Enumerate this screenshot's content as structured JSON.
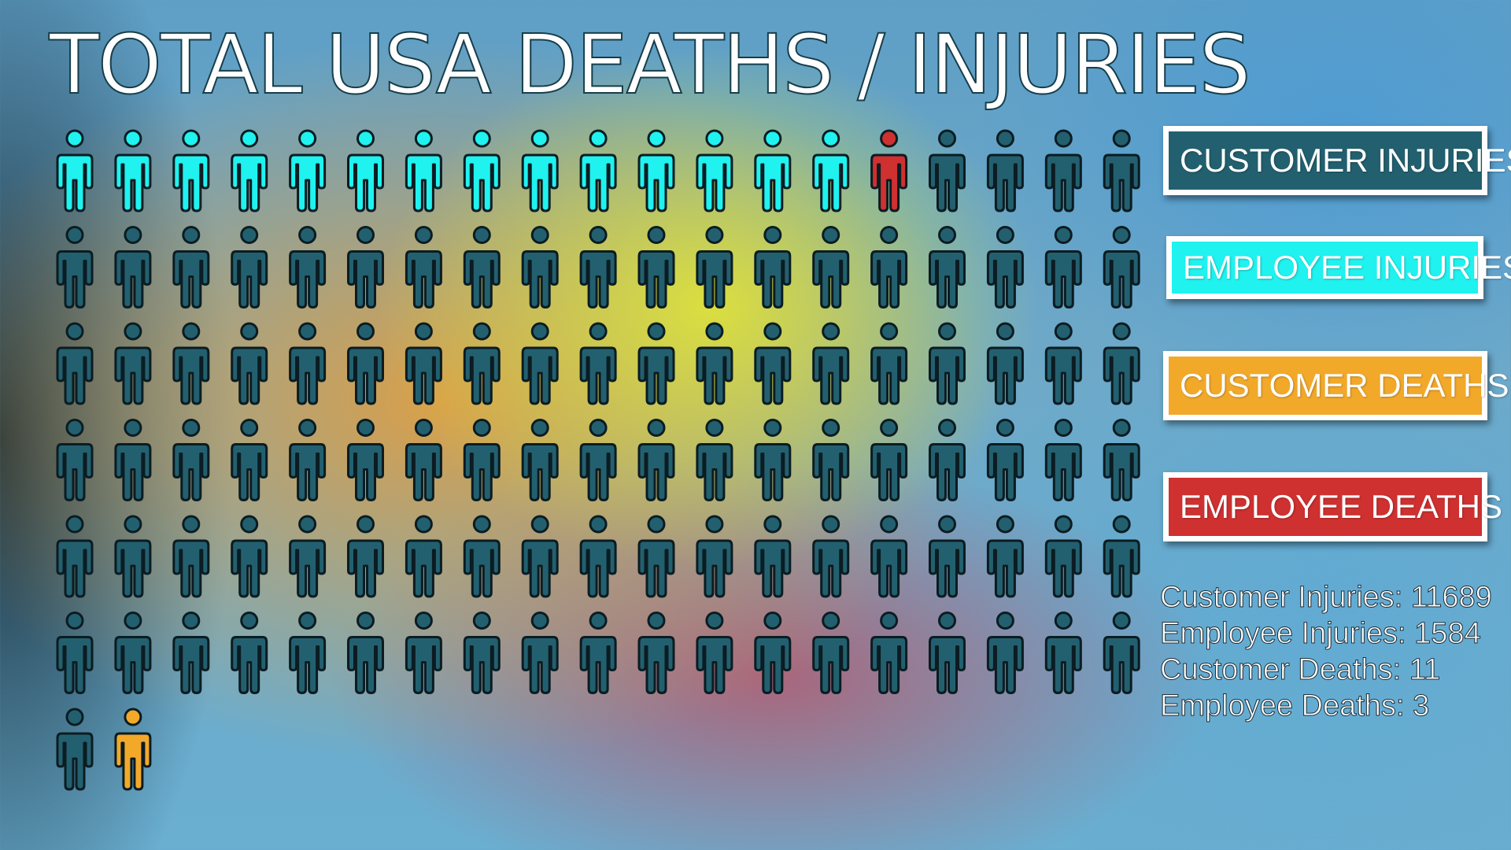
{
  "chart_data": {
    "type": "pictograph",
    "title": "TOTAL USA DEATHS / INJURIES",
    "unit_note": "",
    "icons_per_row": 19,
    "icon_sequence": [
      {
        "category": "employee_injuries",
        "count": 14
      },
      {
        "category": "employee_deaths",
        "count": 1
      },
      {
        "category": "customer_injuries",
        "count": 100
      },
      {
        "category": "customer_deaths",
        "count": 1
      }
    ],
    "legend": [
      {
        "key": "customer_injuries",
        "label": "CUSTOMER INJURIES",
        "color": "#23606f"
      },
      {
        "key": "employee_injuries",
        "label": "EMPLOYEE INJURIES",
        "color": "#1ff2ef"
      },
      {
        "key": "customer_deaths",
        "label": "CUSTOMER DEATHS",
        "color": "#f2a92a"
      },
      {
        "key": "employee_deaths",
        "label": "EMPLOYEE DEATHS",
        "color": "#cf3030"
      }
    ],
    "stats": [
      {
        "label": "Customer Injuries",
        "value": 11689
      },
      {
        "label": "Employee Injuries",
        "value": 1584
      },
      {
        "label": "Customer Deaths",
        "value": 11
      },
      {
        "label": "Employee Deaths",
        "value": 3
      }
    ]
  },
  "colors": {
    "icon_outline": "#0b1c22",
    "legend_border": "#ffffff",
    "text": "#ffffff"
  }
}
